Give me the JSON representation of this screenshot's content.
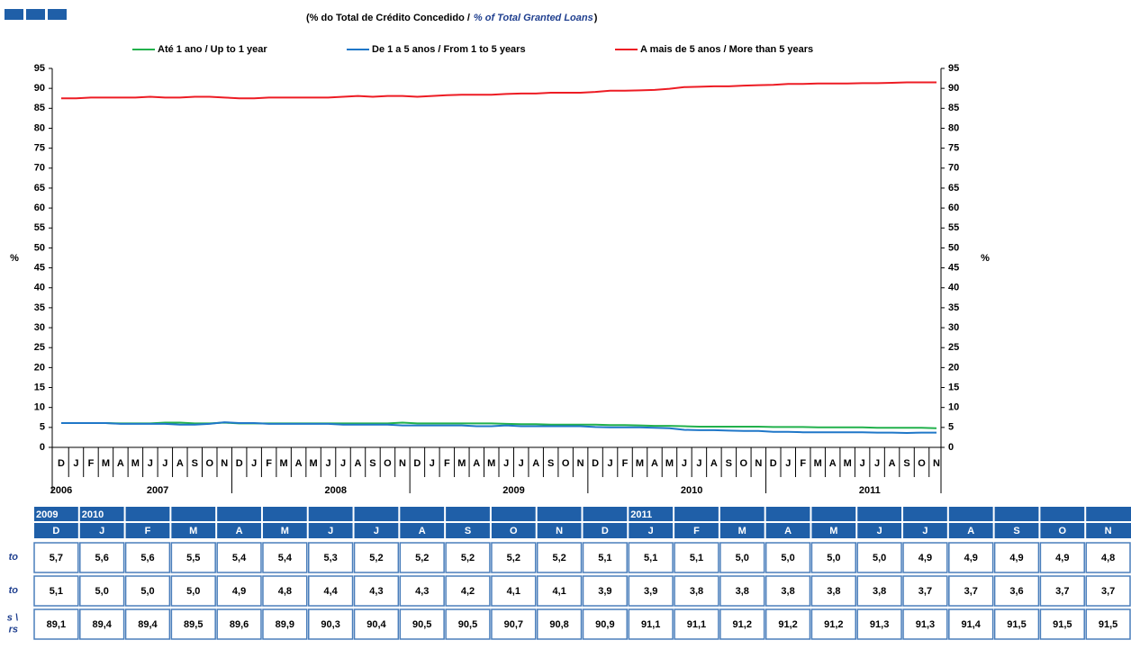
{
  "chart_data": {
    "type": "line",
    "subtitle_pt": "(% do Total de Crédito Concedido /",
    "subtitle_en": "% of Total Granted Loans",
    "subtitle_end": ")",
    "ylabel": "%",
    "y2label": "%",
    "categories": [
      "D",
      "J",
      "F",
      "M",
      "A",
      "M",
      "J",
      "J",
      "A",
      "S",
      "O",
      "N",
      "D",
      "J",
      "F",
      "M",
      "A",
      "M",
      "J",
      "J",
      "A",
      "S",
      "O",
      "N",
      "D",
      "J",
      "F",
      "M",
      "A",
      "M",
      "J",
      "J",
      "A",
      "S",
      "O",
      "N",
      "D",
      "J",
      "F",
      "M",
      "A",
      "M",
      "J",
      "J",
      "A",
      "S",
      "O",
      "N",
      "D",
      "J",
      "F",
      "M",
      "A",
      "M",
      "J",
      "J",
      "A",
      "S",
      "O",
      "N"
    ],
    "years": [
      "2006",
      "2007",
      "2008",
      "2009",
      "2010",
      "2011"
    ],
    "ylim": [
      0,
      95
    ],
    "yticks": [
      0,
      5,
      10,
      15,
      20,
      25,
      30,
      35,
      40,
      45,
      50,
      55,
      60,
      65,
      70,
      75,
      80,
      85,
      90,
      95
    ],
    "y2lim": [
      0,
      95
    ],
    "y2ticks": [
      0,
      5,
      10,
      15,
      20,
      25,
      30,
      35,
      40,
      45,
      50,
      55,
      60,
      65,
      70,
      75,
      80,
      85,
      90,
      95
    ],
    "series": [
      {
        "name": "Até 1 ano / Up to 1 year",
        "color": "#22b14c",
        "values": [
          6.1,
          6.1,
          6.1,
          6.1,
          6.0,
          6.0,
          6.0,
          6.2,
          6.2,
          6.0,
          6.0,
          6.2,
          6.0,
          6.0,
          6.0,
          6.0,
          6.0,
          6.0,
          6.0,
          6.0,
          6.0,
          6.0,
          6.0,
          6.2,
          6.0,
          6.0,
          6.0,
          6.0,
          6.0,
          6.0,
          5.9,
          5.8,
          5.8,
          5.7,
          5.7,
          5.7,
          5.7,
          5.6,
          5.6,
          5.5,
          5.4,
          5.4,
          5.3,
          5.2,
          5.2,
          5.2,
          5.2,
          5.2,
          5.1,
          5.1,
          5.1,
          5.0,
          5.0,
          5.0,
          5.0,
          4.9,
          4.9,
          4.9,
          4.9,
          4.8
        ]
      },
      {
        "name": "De 1 a 5 anos / From 1 to 5 years",
        "color": "#1f77c8",
        "values": [
          6.1,
          6.1,
          6.1,
          6.1,
          5.9,
          5.9,
          5.9,
          5.9,
          5.7,
          5.7,
          5.9,
          6.3,
          6.1,
          6.1,
          5.9,
          5.9,
          5.9,
          5.9,
          5.9,
          5.7,
          5.7,
          5.7,
          5.7,
          5.5,
          5.5,
          5.5,
          5.5,
          5.5,
          5.3,
          5.3,
          5.5,
          5.3,
          5.3,
          5.3,
          5.3,
          5.3,
          5.1,
          5.0,
          5.0,
          5.0,
          4.9,
          4.8,
          4.4,
          4.3,
          4.3,
          4.2,
          4.1,
          4.1,
          3.9,
          3.9,
          3.8,
          3.8,
          3.8,
          3.8,
          3.8,
          3.7,
          3.7,
          3.6,
          3.7,
          3.7
        ]
      },
      {
        "name": "A mais de 5 anos / More than 5 years",
        "color": "#ed1c24",
        "values": [
          87.5,
          87.5,
          87.7,
          87.7,
          87.7,
          87.7,
          87.9,
          87.7,
          87.7,
          87.9,
          87.9,
          87.7,
          87.5,
          87.5,
          87.7,
          87.7,
          87.7,
          87.7,
          87.7,
          87.9,
          88.1,
          87.9,
          88.1,
          88.1,
          87.9,
          88.1,
          88.3,
          88.4,
          88.4,
          88.4,
          88.6,
          88.7,
          88.7,
          88.9,
          88.9,
          88.9,
          89.1,
          89.4,
          89.4,
          89.5,
          89.6,
          89.9,
          90.3,
          90.4,
          90.5,
          90.5,
          90.7,
          90.8,
          90.9,
          91.1,
          91.1,
          91.2,
          91.2,
          91.2,
          91.3,
          91.3,
          91.4,
          91.5,
          91.5,
          91.5
        ]
      }
    ]
  },
  "table": {
    "years": [
      "2009",
      "2010",
      null,
      null,
      null,
      null,
      null,
      null,
      null,
      null,
      null,
      null,
      null,
      "2011",
      null,
      null,
      null,
      null,
      null,
      null,
      null,
      null,
      null,
      null
    ],
    "months": [
      "D",
      "J",
      "F",
      "M",
      "A",
      "M",
      "J",
      "J",
      "A",
      "S",
      "O",
      "N",
      "D",
      "J",
      "F",
      "M",
      "A",
      "M",
      "J",
      "J",
      "A",
      "S",
      "O",
      "N"
    ],
    "row_labels": [
      [
        "to"
      ],
      [
        "to"
      ],
      [
        "s \\",
        "rs"
      ]
    ],
    "rows": [
      [
        "5,7",
        "5,6",
        "5,6",
        "5,5",
        "5,4",
        "5,4",
        "5,3",
        "5,2",
        "5,2",
        "5,2",
        "5,2",
        "5,2",
        "5,1",
        "5,1",
        "5,1",
        "5,0",
        "5,0",
        "5,0",
        "5,0",
        "4,9",
        "4,9",
        "4,9",
        "4,9",
        "4,8"
      ],
      [
        "5,1",
        "5,0",
        "5,0",
        "5,0",
        "4,9",
        "4,8",
        "4,4",
        "4,3",
        "4,3",
        "4,2",
        "4,1",
        "4,1",
        "3,9",
        "3,9",
        "3,8",
        "3,8",
        "3,8",
        "3,8",
        "3,8",
        "3,7",
        "3,7",
        "3,6",
        "3,7",
        "3,7"
      ],
      [
        "89,1",
        "89,4",
        "89,4",
        "89,5",
        "89,6",
        "89,9",
        "90,3",
        "90,4",
        "90,5",
        "90,5",
        "90,7",
        "90,8",
        "90,9",
        "91,1",
        "91,1",
        "91,2",
        "91,2",
        "91,2",
        "91,3",
        "91,3",
        "91,4",
        "91,5",
        "91,5",
        "91,5"
      ]
    ]
  }
}
